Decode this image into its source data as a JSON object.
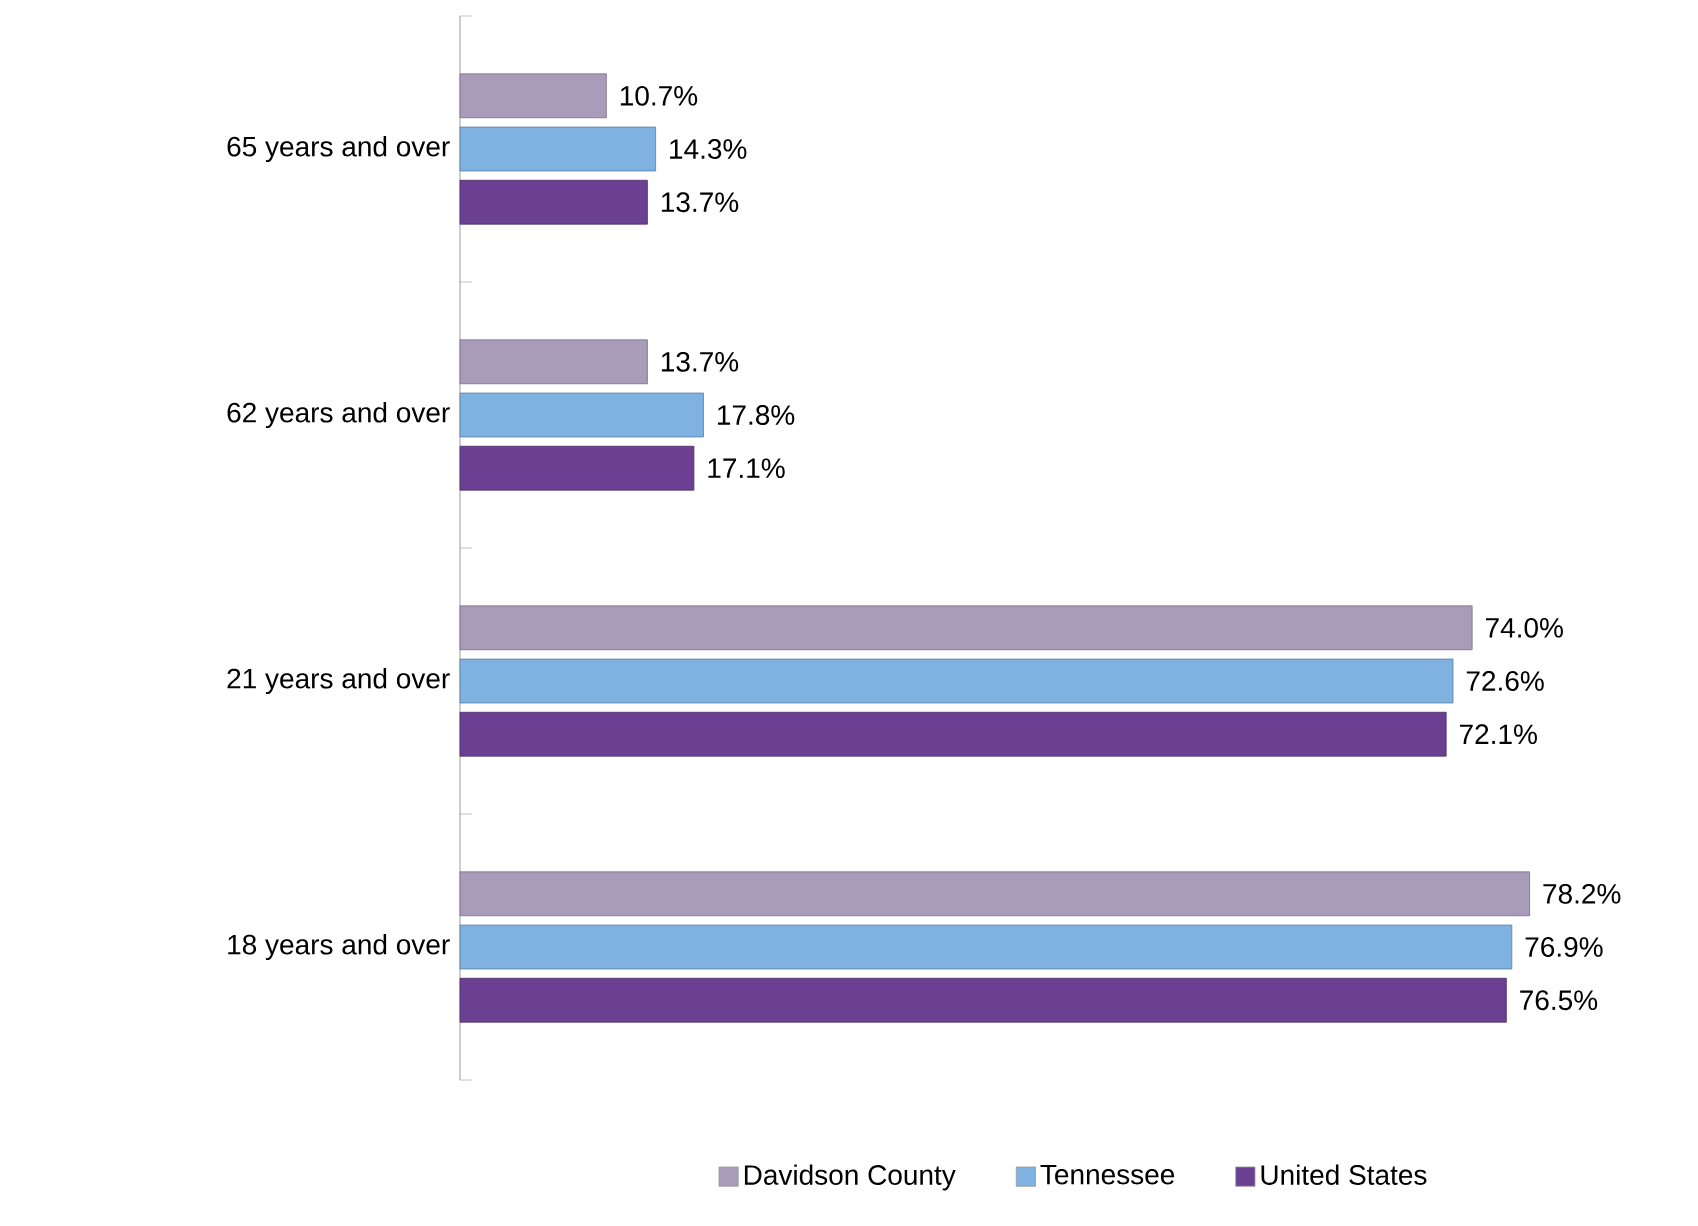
{
  "chart_data": {
    "type": "bar",
    "orientation": "horizontal",
    "legend": "bottom",
    "categories": [
      "65 years and over",
      "62 years and over",
      "21 years and over",
      "18 years and over"
    ],
    "series": [
      {
        "name": "Davidson County",
        "color": "#a99cba",
        "values": [
          10.7,
          13.7,
          74.0,
          78.2
        ],
        "value_labels": [
          "10.7%",
          "13.7%",
          "74.0%",
          "78.2%"
        ]
      },
      {
        "name": "Tennessee",
        "color": "#7fb2e0",
        "values": [
          14.3,
          17.8,
          72.6,
          76.9
        ],
        "value_labels": [
          "14.3%",
          "17.8%",
          "72.6%",
          "76.9%"
        ]
      },
      {
        "name": "United States",
        "color": "#6b3f92",
        "values": [
          13.7,
          17.1,
          72.1,
          76.5
        ],
        "value_labels": [
          "13.7%",
          "17.1%",
          "72.1%",
          "76.5%"
        ]
      }
    ]
  }
}
